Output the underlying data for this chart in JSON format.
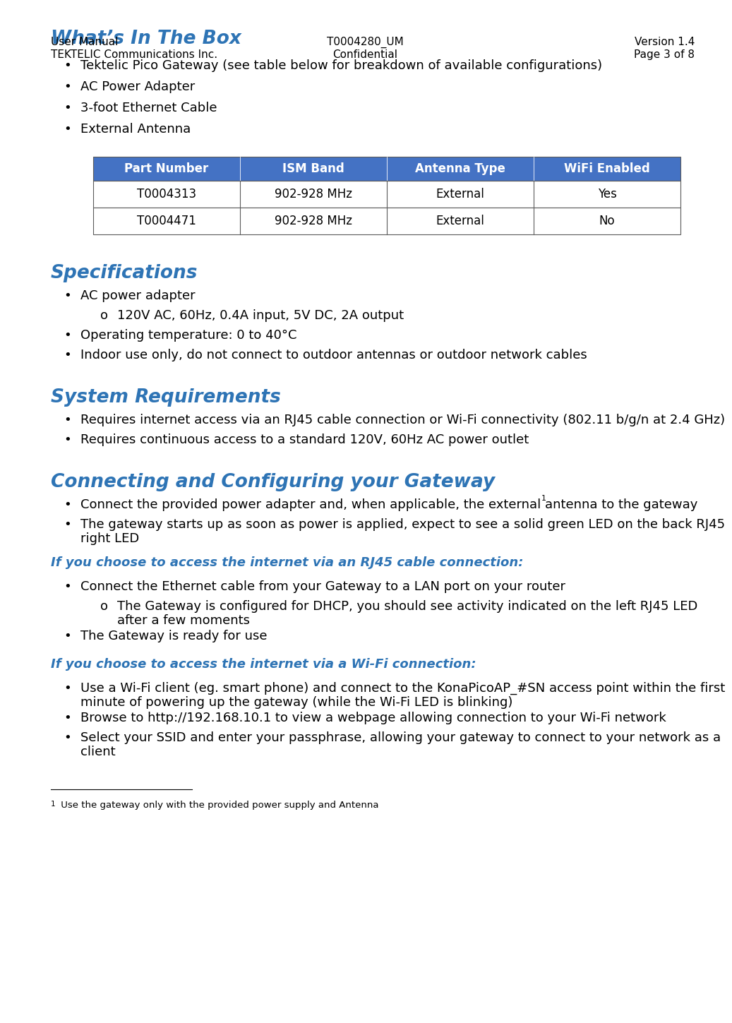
{
  "bg_color": "#ffffff",
  "heading_color": "#2E74B5",
  "body_color": "#000000",
  "table_header_bg": "#4472C4",
  "table_header_fg": "#ffffff",
  "table_border_color": "#5B5B5B",
  "section1_title": "What’s In The Box",
  "section1_bullets": [
    "Tektelic Pico Gateway (see table below for breakdown of available configurations)",
    "AC Power Adapter",
    "3-foot Ethernet Cable",
    "External Antenna"
  ],
  "table_headers": [
    "Part Number",
    "ISM Band",
    "Antenna Type",
    "WiFi Enabled"
  ],
  "table_rows": [
    [
      "T0004313",
      "902-928 MHz",
      "External",
      "Yes"
    ],
    [
      "T0004471",
      "902-928 MHz",
      "External",
      "No"
    ]
  ],
  "section2_title": "Specifications",
  "section2_content": [
    {
      "level": 1,
      "text": "AC power adapter"
    },
    {
      "level": 2,
      "text": "120V AC, 60Hz, 0.4A input, 5V DC, 2A output"
    },
    {
      "level": 1,
      "text": "Operating temperature: 0 to 40°C"
    },
    {
      "level": 1,
      "text": "Indoor use only, do not connect to outdoor antennas or outdoor network cables"
    }
  ],
  "section3_title": "System Requirements",
  "section3_content": [
    {
      "level": 1,
      "text": "Requires internet access via an RJ45 cable connection or Wi-Fi connectivity (802.11 b/g/n at 2.4 GHz)"
    },
    {
      "level": 1,
      "text": "Requires continuous access to a standard 120V, 60Hz AC power outlet"
    }
  ],
  "section4_title": "Connecting and Configuring your Gateway",
  "section4_content": [
    {
      "level": 1,
      "text": "Connect the provided power adapter and, when applicable, the external antenna to the gateway",
      "superscript": "1"
    },
    {
      "level": 1,
      "text": "The gateway starts up as soon as power is applied, expect to see a solid green LED on the back RJ45\nright LED",
      "superscript": ""
    }
  ],
  "italic_heading1": "If you choose to access the internet via an RJ45 cable connection:",
  "rj45_content": [
    {
      "level": 1,
      "text": "Connect the Ethernet cable from your Gateway to a LAN port on your router",
      "superscript": ""
    },
    {
      "level": 2,
      "text": "The Gateway is configured for DHCP, you should see activity indicated on the left RJ45 LED\nafter a few moments"
    },
    {
      "level": 1,
      "text": "The Gateway is ready for use",
      "superscript": ""
    }
  ],
  "italic_heading2": "If you choose to access the internet via a Wi-Fi connection:",
  "wifi_content": [
    {
      "level": 1,
      "text": "Use a Wi-Fi client (eg. smart phone) and connect to the KonaPicoAP_#SN access point within the first\nminute of powering up the gateway (while the Wi-Fi LED is blinking)"
    },
    {
      "level": 1,
      "text": "Browse to http://192.168.10.1 to view a webpage allowing connection to your Wi-Fi network"
    },
    {
      "level": 1,
      "text": "Select your SSID and enter your passphrase, allowing your gateway to connect to your network as a\nclient"
    }
  ],
  "footnote_text": " Use the gateway only with the provided power supply and Antenna",
  "footer_left1": "User Manual",
  "footer_left2": "TEKTELIC Communications Inc.",
  "footer_center1": "T0004280_UM",
  "footer_center2": "Confidential",
  "footer_right1": "Version 1.4",
  "footer_right2": "Page 3 of 8"
}
